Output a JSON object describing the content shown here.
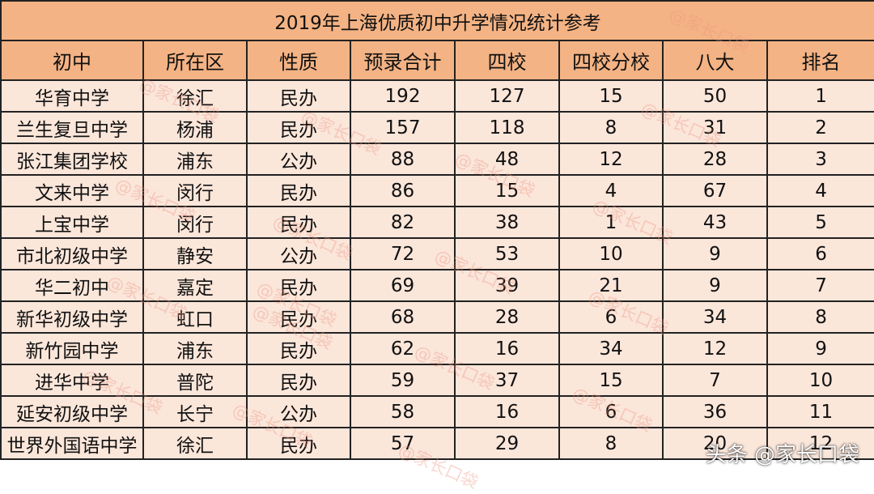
{
  "table": {
    "title": "2019年上海优质初中升学情况统计参考",
    "headers": [
      "初中",
      "所在区",
      "性质",
      "预录合计",
      "四校",
      "四校分校",
      "八大",
      "排名"
    ],
    "rows": [
      [
        "华育中学",
        "徐汇",
        "民办",
        "192",
        "127",
        "15",
        "50",
        "1"
      ],
      [
        "兰生复旦中学",
        "杨浦",
        "民办",
        "157",
        "118",
        "8",
        "31",
        "2"
      ],
      [
        "张江集团学校",
        "浦东",
        "公办",
        "88",
        "48",
        "12",
        "28",
        "3"
      ],
      [
        "文来中学",
        "闵行",
        "民办",
        "86",
        "15",
        "4",
        "67",
        "4"
      ],
      [
        "上宝中学",
        "闵行",
        "民办",
        "82",
        "38",
        "1",
        "43",
        "5"
      ],
      [
        "市北初级中学",
        "静安",
        "公办",
        "72",
        "53",
        "10",
        "9",
        "6"
      ],
      [
        "华二初中",
        "嘉定",
        "民办",
        "69",
        "39",
        "21",
        "9",
        "7"
      ],
      [
        "新华初级中学",
        "虹口",
        "民办",
        "68",
        "28",
        "6",
        "34",
        "8"
      ],
      [
        "新竹园中学",
        "浦东",
        "民办",
        "62",
        "16",
        "34",
        "12",
        "9"
      ],
      [
        "进华中学",
        "普陀",
        "民办",
        "59",
        "37",
        "15",
        "7",
        "10"
      ],
      [
        "延安初级中学",
        "长宁",
        "公办",
        "58",
        "16",
        "6",
        "36",
        "11"
      ],
      [
        "世界外国语中学",
        "徐汇",
        "民办",
        "57",
        "29",
        "8",
        "20",
        "12"
      ]
    ]
  },
  "watermark": {
    "text": "@家长口袋",
    "color": "#ec9682"
  },
  "credit": "头条 @家长口袋"
}
